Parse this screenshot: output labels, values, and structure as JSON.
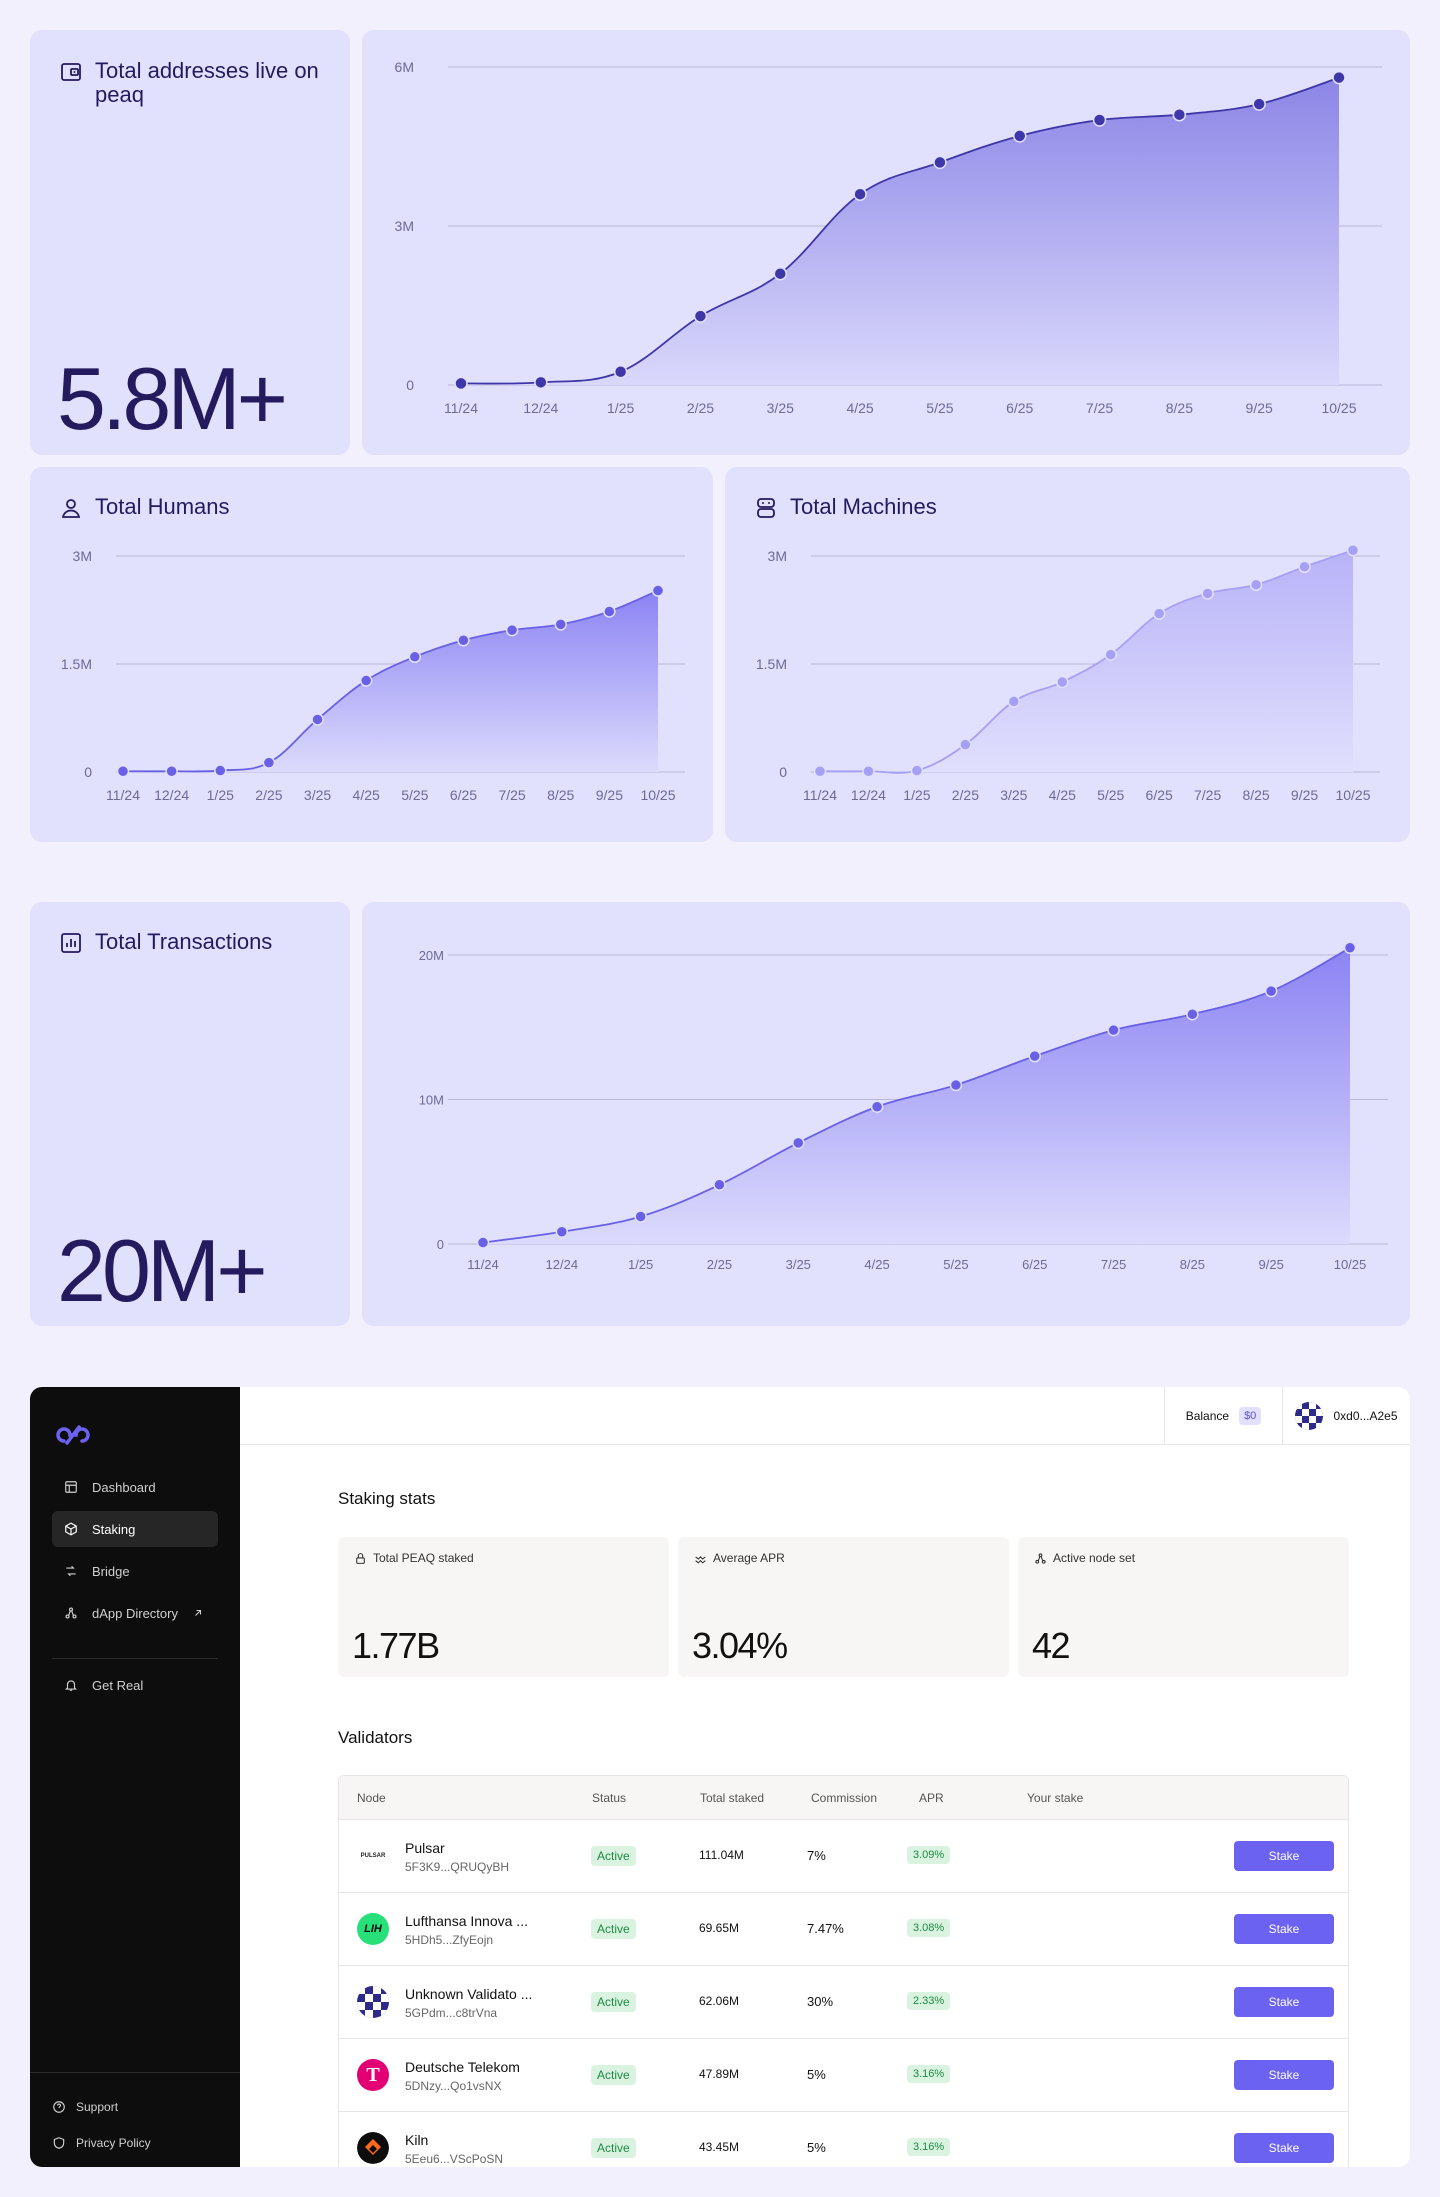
{
  "addresses": {
    "title": "Total addresses live on peaq",
    "value": "5.8M+"
  },
  "humans": {
    "title": "Total Humans"
  },
  "machines": {
    "title": "Total Machines"
  },
  "transactions": {
    "title": "Total Transactions",
    "value": "20M+"
  },
  "chart_data": [
    {
      "id": "addresses",
      "type": "area",
      "categories": [
        "11/24",
        "12/24",
        "1/25",
        "2/25",
        "3/25",
        "4/25",
        "5/25",
        "6/25",
        "7/25",
        "8/25",
        "9/25",
        "10/25"
      ],
      "values": [
        0.03,
        0.05,
        0.25,
        1.3,
        2.1,
        3.6,
        4.2,
        4.7,
        5.0,
        5.1,
        5.3,
        5.8
      ],
      "unit": "M",
      "ylim": [
        0,
        6
      ],
      "yticks": [
        0,
        3,
        6
      ],
      "ytick_labels": [
        "0",
        "3M",
        "6M"
      ],
      "grid": true,
      "color": "#3f36a8"
    },
    {
      "id": "humans",
      "type": "area",
      "categories": [
        "11/24",
        "12/24",
        "1/25",
        "2/25",
        "3/25",
        "4/25",
        "5/25",
        "6/25",
        "7/25",
        "8/25",
        "9/25",
        "10/25"
      ],
      "values": [
        0.01,
        0.01,
        0.02,
        0.13,
        0.73,
        1.27,
        1.6,
        1.83,
        1.97,
        2.05,
        2.23,
        2.52
      ],
      "unit": "M",
      "ylim": [
        0,
        3
      ],
      "yticks": [
        0,
        1.5,
        3
      ],
      "ytick_labels": [
        "0",
        "1.5M",
        "3M"
      ],
      "grid": true,
      "color": "#6a60e6"
    },
    {
      "id": "machines",
      "type": "area",
      "categories": [
        "11/24",
        "12/24",
        "1/25",
        "2/25",
        "3/25",
        "4/25",
        "5/25",
        "6/25",
        "7/25",
        "8/25",
        "9/25",
        "10/25"
      ],
      "values": [
        0.01,
        0.01,
        0.02,
        0.38,
        0.98,
        1.25,
        1.63,
        2.2,
        2.48,
        2.6,
        2.85,
        3.08
      ],
      "unit": "M",
      "ylim": [
        0,
        3
      ],
      "yticks": [
        0,
        1.5,
        3
      ],
      "ytick_labels": [
        "0",
        "1.5M",
        "3M"
      ],
      "grid": true,
      "color": "#a6a0f5"
    },
    {
      "id": "transactions",
      "type": "area",
      "categories": [
        "11/24",
        "12/24",
        "1/25",
        "2/25",
        "3/25",
        "4/25",
        "5/25",
        "6/25",
        "7/25",
        "8/25",
        "9/25",
        "10/25"
      ],
      "values": [
        0.1,
        0.85,
        1.9,
        4.1,
        7.0,
        9.5,
        11.0,
        13.0,
        14.8,
        15.9,
        17.5,
        20.5
      ],
      "unit": "M",
      "ylim": [
        0,
        20
      ],
      "yticks": [
        0,
        10,
        20
      ],
      "ytick_labels": [
        "0",
        "10M",
        "20M"
      ],
      "grid": true,
      "color": "#6a60e6"
    }
  ],
  "dashboard": {
    "nav": [
      {
        "label": "Dashboard",
        "icon": "layout-icon"
      },
      {
        "label": "Staking",
        "icon": "cube-icon",
        "active": true
      },
      {
        "label": "Bridge",
        "icon": "bridge-icon"
      },
      {
        "label": "dApp Directory",
        "icon": "nodes-icon",
        "external": true
      },
      {
        "label": "Get Real",
        "icon": "bell-icon"
      }
    ],
    "footer": [
      {
        "label": "Support",
        "icon": "help-icon"
      },
      {
        "label": "Privacy Policy",
        "icon": "shield-icon"
      }
    ],
    "topbar": {
      "balance_label": "Balance",
      "balance_value": "$0",
      "wallet": "0xd0...A2e5"
    },
    "stats_title": "Staking stats",
    "stats": [
      {
        "label": "Total PEAQ staked",
        "value": "1.77B",
        "icon": "lock-icon"
      },
      {
        "label": "Average APR",
        "value": "3.04%",
        "icon": "trend-icon"
      },
      {
        "label": "Active node set",
        "value": "42",
        "icon": "nodes-icon"
      }
    ],
    "validators_title": "Validators",
    "columns": [
      "Node",
      "Status",
      "Total staked",
      "Commission",
      "APR",
      "Your stake"
    ],
    "validators": [
      {
        "name": "Pulsar",
        "address": "5F3K9...QRUQyBH",
        "status": "Active",
        "staked": "111.04M",
        "commission": "7%",
        "apr": "3.09%",
        "action": "Stake",
        "logo": "pulsar"
      },
      {
        "name": "Lufthansa Innova ...",
        "address": "5HDh5...ZfyEojn",
        "status": "Active",
        "staked": "69.65M",
        "commission": "7.47%",
        "apr": "3.08%",
        "action": "Stake",
        "logo": "lufthansa"
      },
      {
        "name": "Unknown Validato ...",
        "address": "5GPdm...c8trVna",
        "status": "Active",
        "staked": "62.06M",
        "commission": "30%",
        "apr": "2.33%",
        "action": "Stake",
        "logo": "pixel"
      },
      {
        "name": "Deutsche Telekom",
        "address": "5DNzy...Qo1vsNX",
        "status": "Active",
        "staked": "47.89M",
        "commission": "5%",
        "apr": "3.16%",
        "action": "Stake",
        "logo": "telekom"
      },
      {
        "name": "Kiln",
        "address": "5Eeu6...VScPoSN",
        "status": "Active",
        "staked": "43.45M",
        "commission": "5%",
        "apr": "3.16%",
        "action": "Stake",
        "logo": "kiln"
      }
    ],
    "logo_text": {
      "pulsar": "PULSAR",
      "lufthansa": "LIH",
      "telekom": "T"
    }
  }
}
